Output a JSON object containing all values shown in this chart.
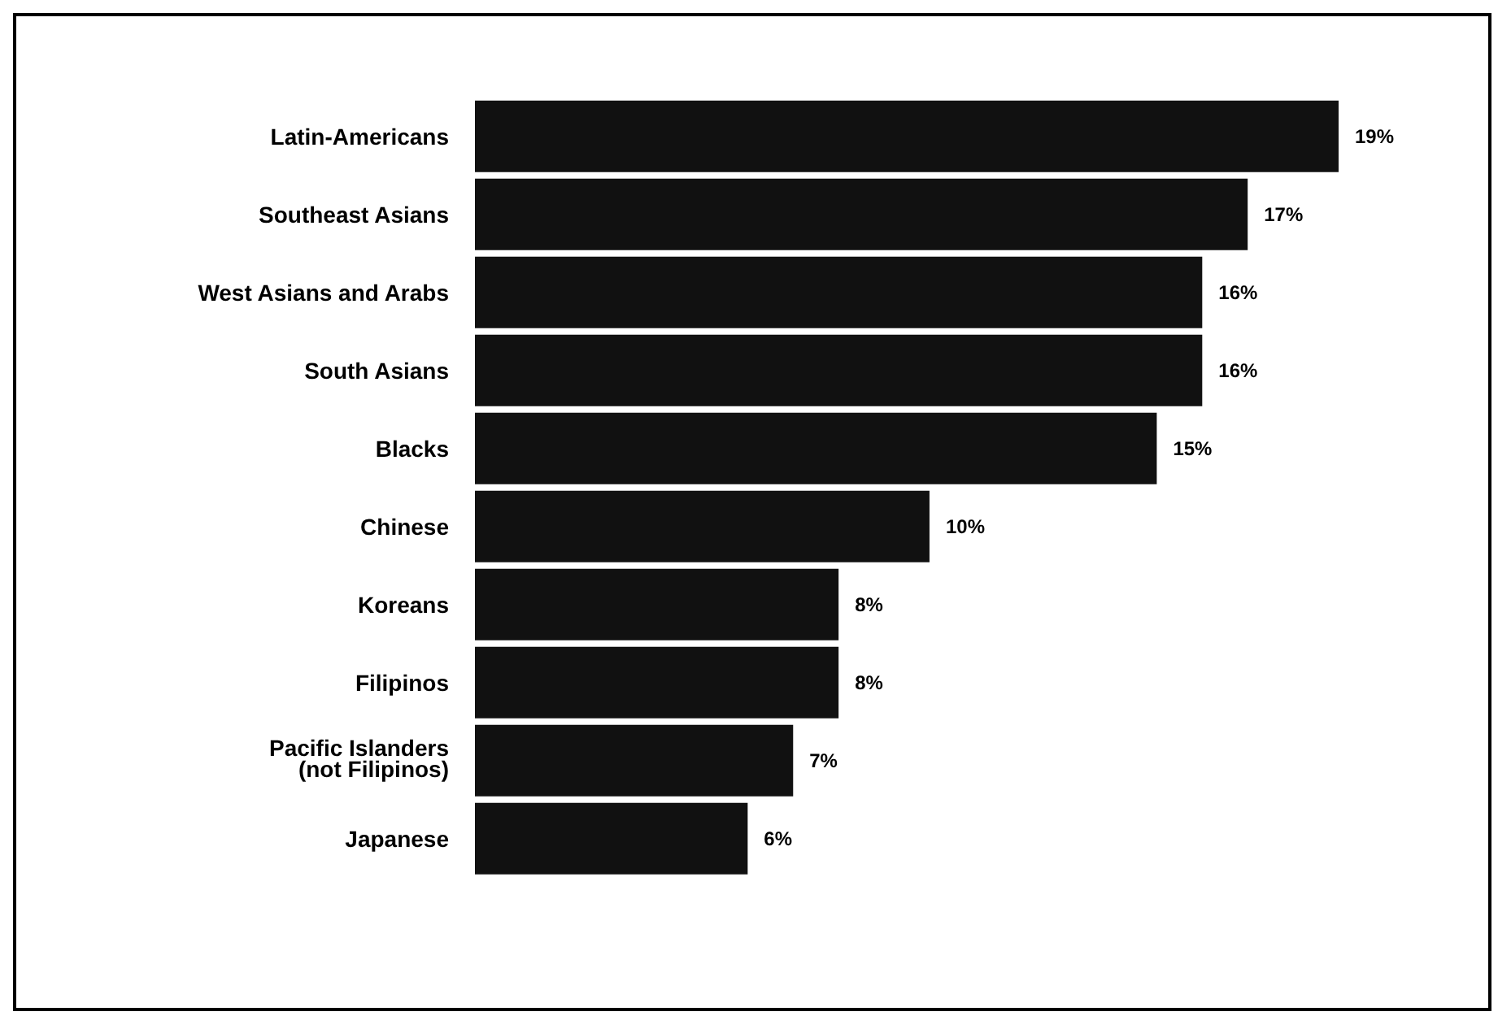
{
  "chart_data": {
    "type": "bar",
    "orientation": "horizontal",
    "categories": [
      "Latin-Americans",
      "Southeast Asians",
      "West Asians and Arabs",
      "South Asians",
      "Blacks",
      "Chinese",
      "Koreans",
      "Filipinos",
      "Pacific Islanders\n(not Filipinos)",
      "Japanese"
    ],
    "values": [
      19,
      17,
      16,
      16,
      15,
      10,
      8,
      8,
      7,
      6
    ],
    "value_labels": [
      "19%",
      "17%",
      "16%",
      "16%",
      "15%",
      "10%",
      "8%",
      "8%",
      "7%",
      "6%"
    ],
    "color": "#111111"
  }
}
